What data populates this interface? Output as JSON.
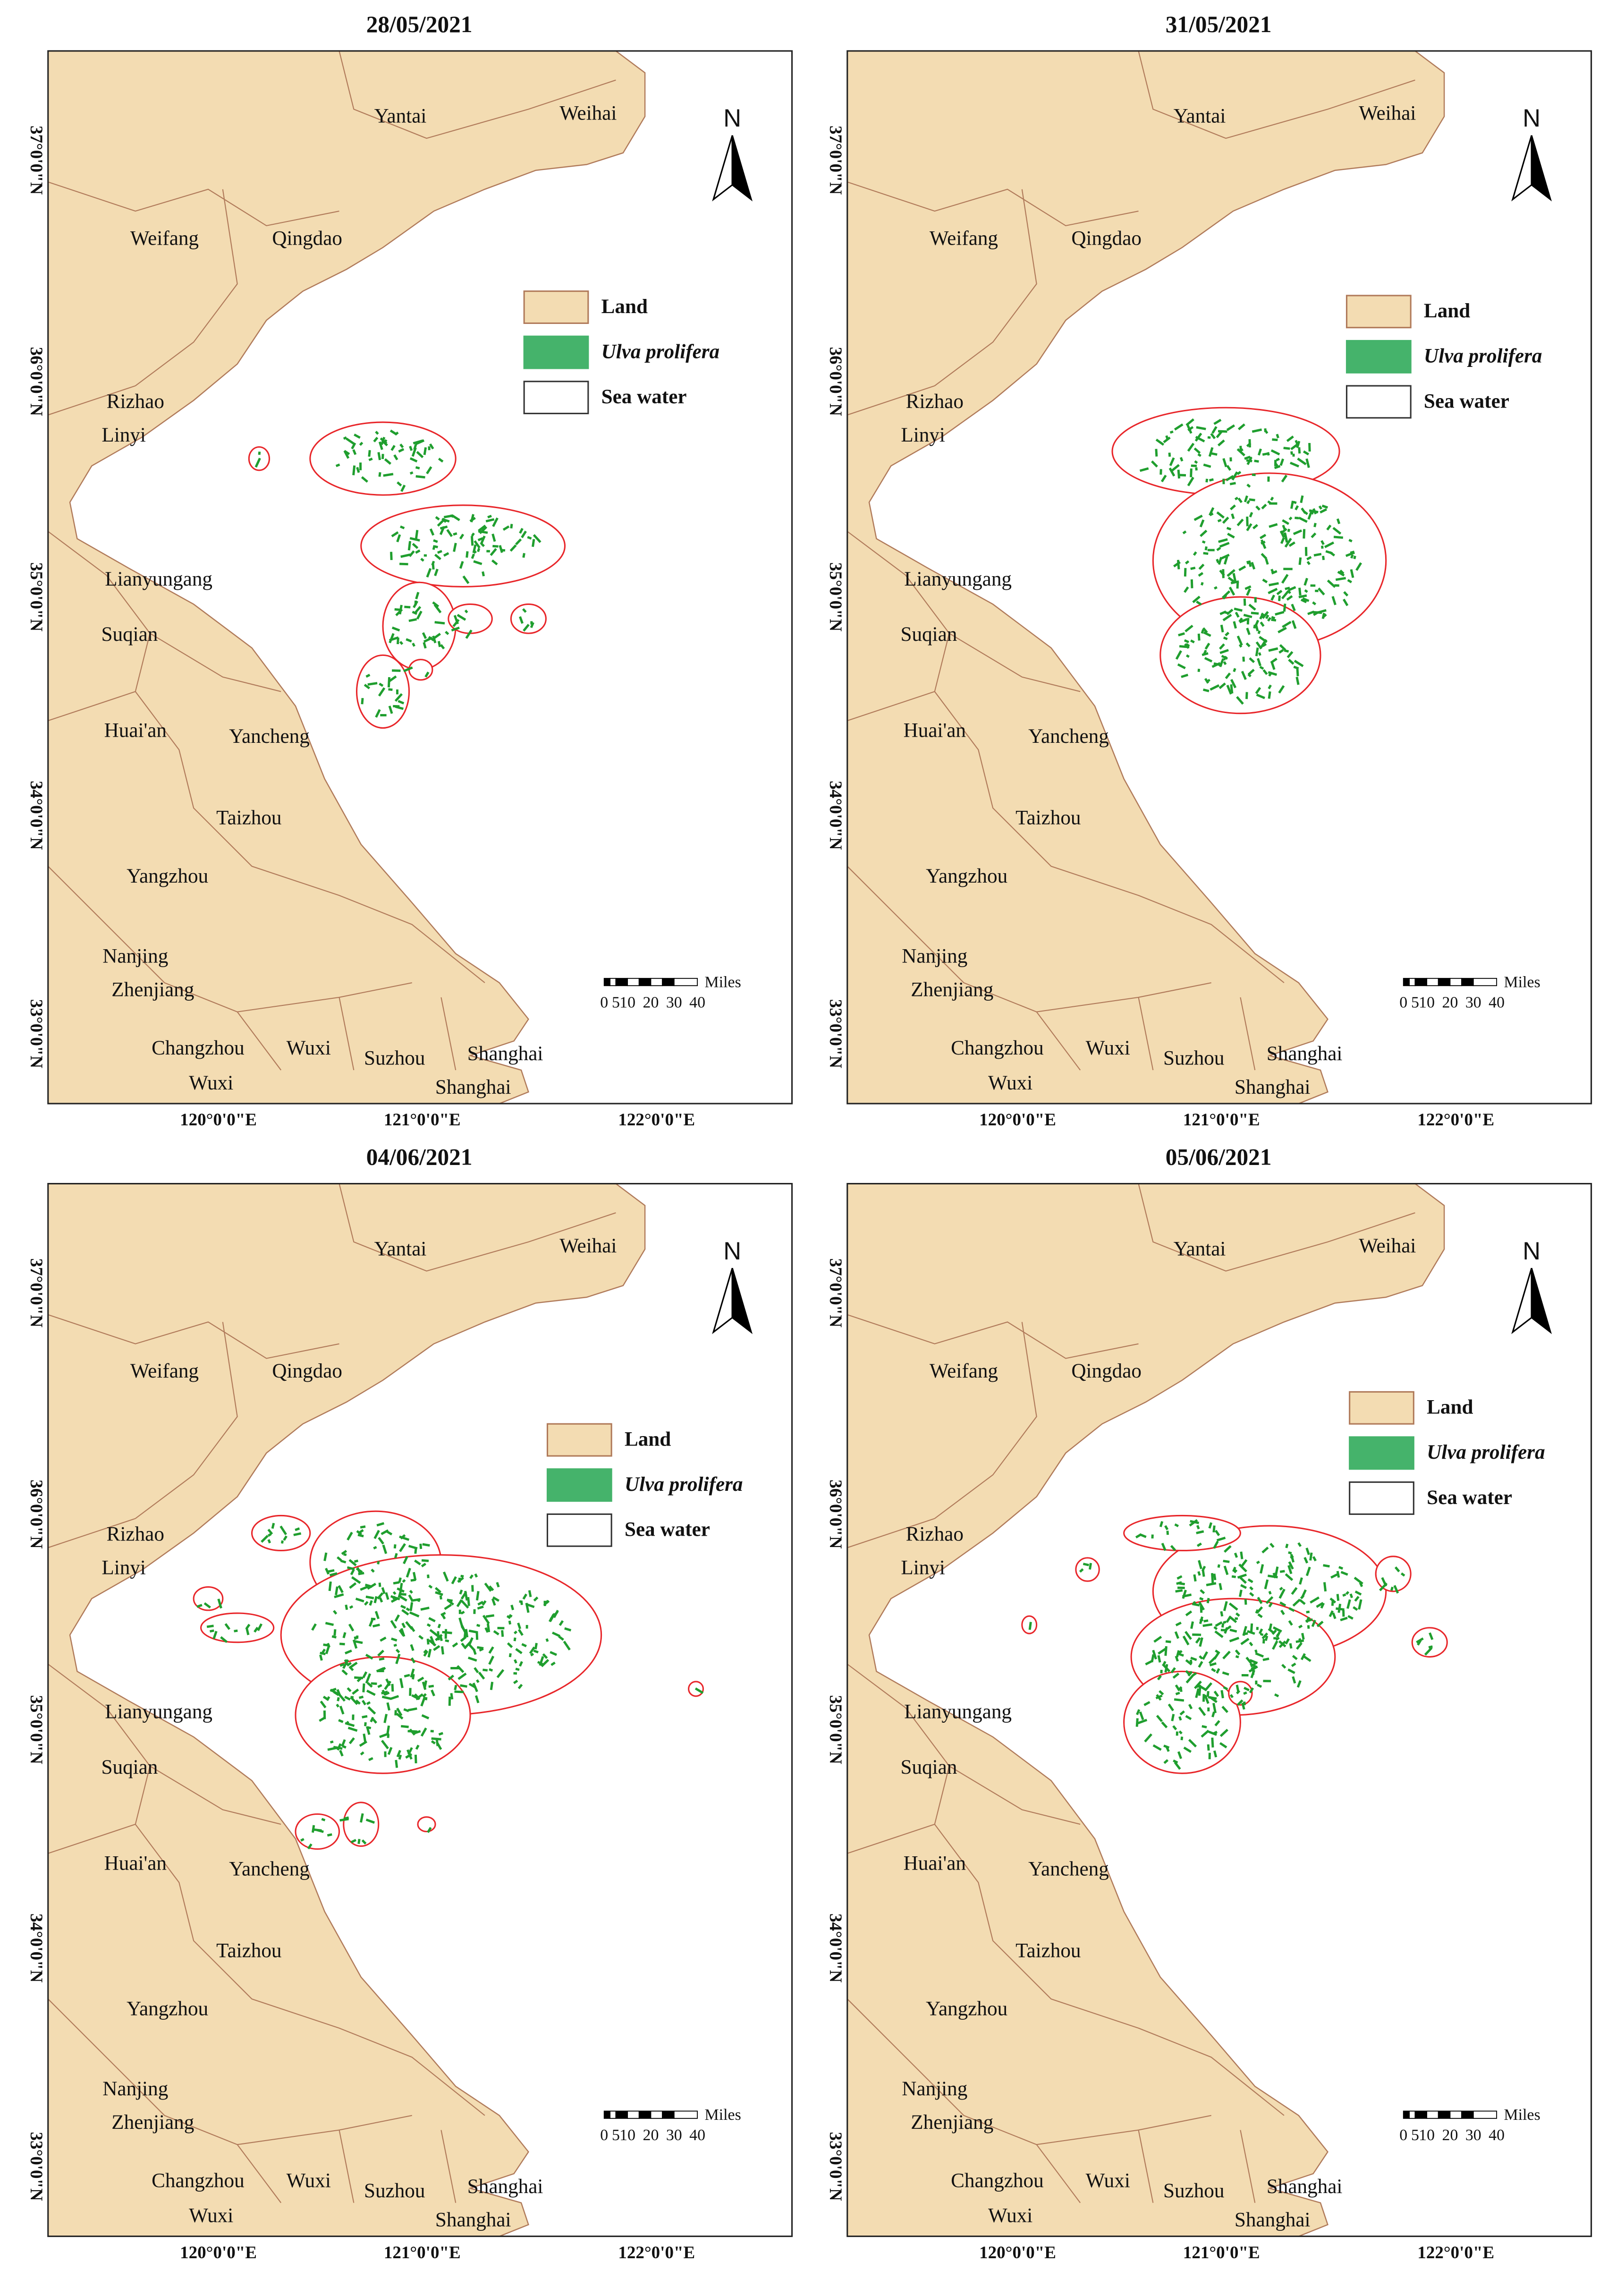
{
  "panels": [
    {
      "title": "28/05/2021"
    },
    {
      "title": "31/05/2021"
    },
    {
      "title": "04/06/2021"
    },
    {
      "title": "05/06/2021"
    }
  ],
  "map": {
    "cities": [
      "Yantai",
      "Weihai",
      "Weifang",
      "Qingdao",
      "Rizhao",
      "Linyi",
      "Lianyungang",
      "Suqian",
      "Huai'an",
      "Yancheng",
      "Taizhou",
      "Yangzhou",
      "Nanjing",
      "Zhenjiang",
      "Changzhou",
      "Wuxi",
      "Suzhou",
      "Shanghai",
      "Wuxi",
      "Shanghai"
    ],
    "lat_labels": [
      "37°0'0\"N",
      "36°0'0\"N",
      "35°0'0\"N",
      "34°0'0\"N",
      "33°0'0\"N"
    ],
    "lon_labels": [
      "120°0'0\"E",
      "121°0'0\"E",
      "122°0'0\"E"
    ],
    "legend": [
      "Land",
      "Ulva prolifera",
      "Sea water"
    ],
    "north": "N",
    "scale": {
      "unit": "Miles",
      "ticks": [
        "0",
        "5",
        "10",
        "20",
        "30",
        "40"
      ]
    }
  }
}
